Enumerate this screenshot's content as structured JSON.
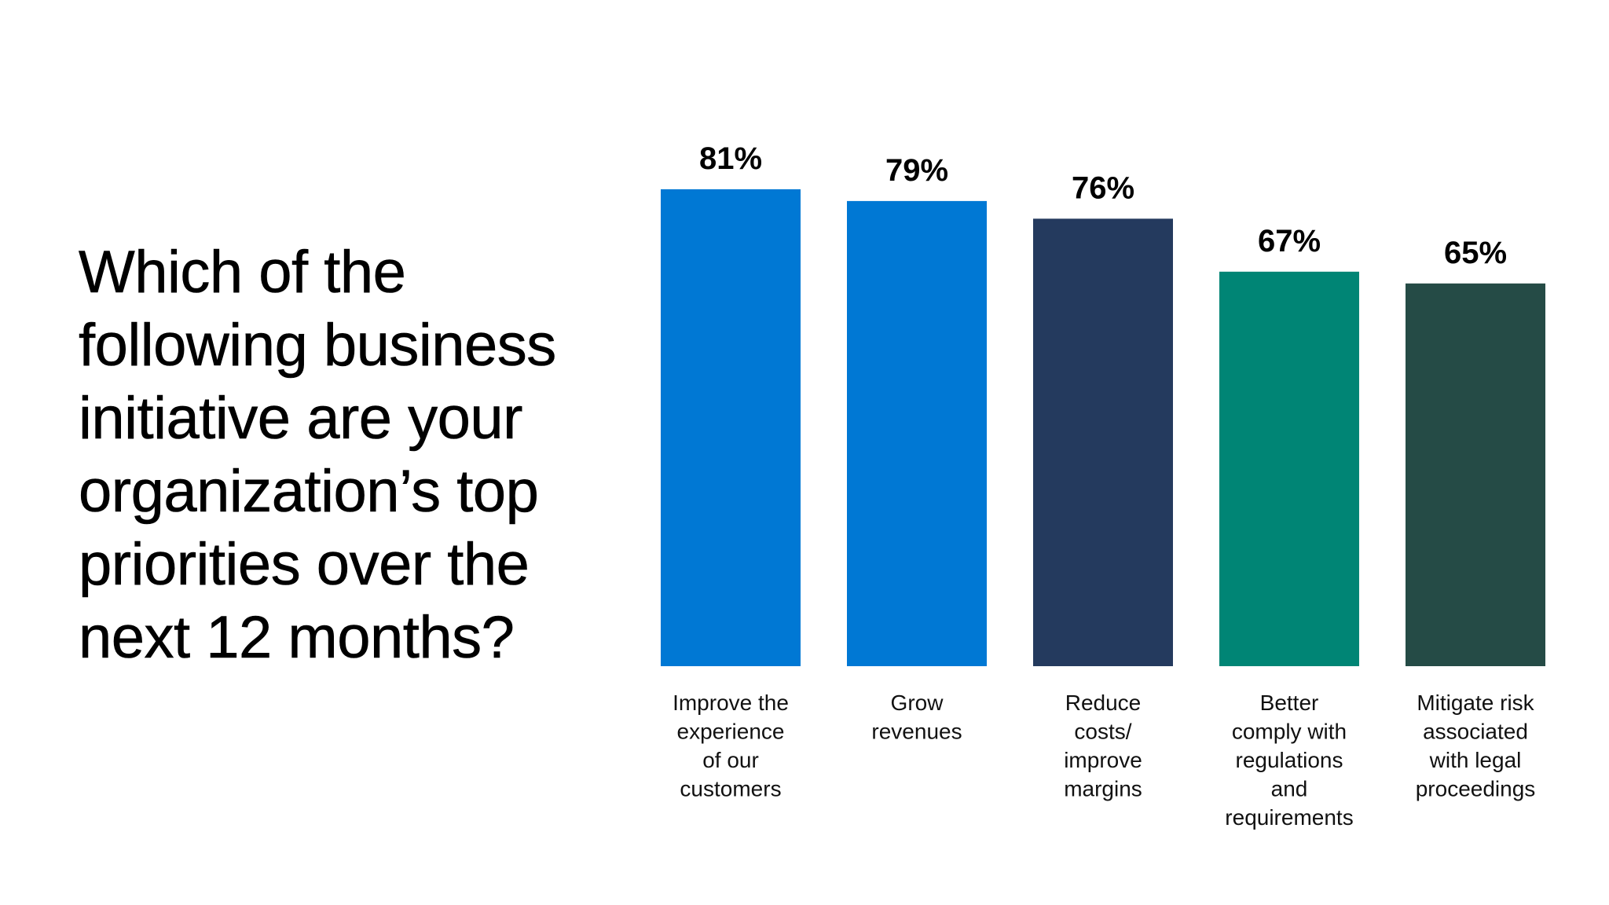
{
  "question": "Which of the following business initiative are your organization’s top priorities over the next 12 months?",
  "chart_data": {
    "type": "bar",
    "title": "",
    "xlabel": "",
    "ylabel": "",
    "ylim": [
      0,
      100
    ],
    "grid": false,
    "categories": [
      "Improve the experience of our customers",
      "Grow revenues",
      "Reduce costs/ improve margins",
      "Better comply with regulations and requirements",
      "Mitigate risk associated with legal proceedings"
    ],
    "category_lines": [
      [
        "Improve the",
        "experience",
        "of our",
        "customers"
      ],
      [
        "Grow",
        "revenues"
      ],
      [
        "Reduce",
        "costs/",
        "improve",
        "margins"
      ],
      [
        "Better",
        "comply with",
        "regulations",
        "and",
        "requirements"
      ],
      [
        "Mitigate risk",
        "associated",
        "with legal",
        "proceedings"
      ]
    ],
    "values": [
      81,
      79,
      76,
      67,
      65
    ],
    "value_labels": [
      "81%",
      "79%",
      "76%",
      "67%",
      "65%"
    ],
    "colors": [
      "#0078D4",
      "#0078D4",
      "#243A5E",
      "#008575",
      "#254B46"
    ]
  }
}
